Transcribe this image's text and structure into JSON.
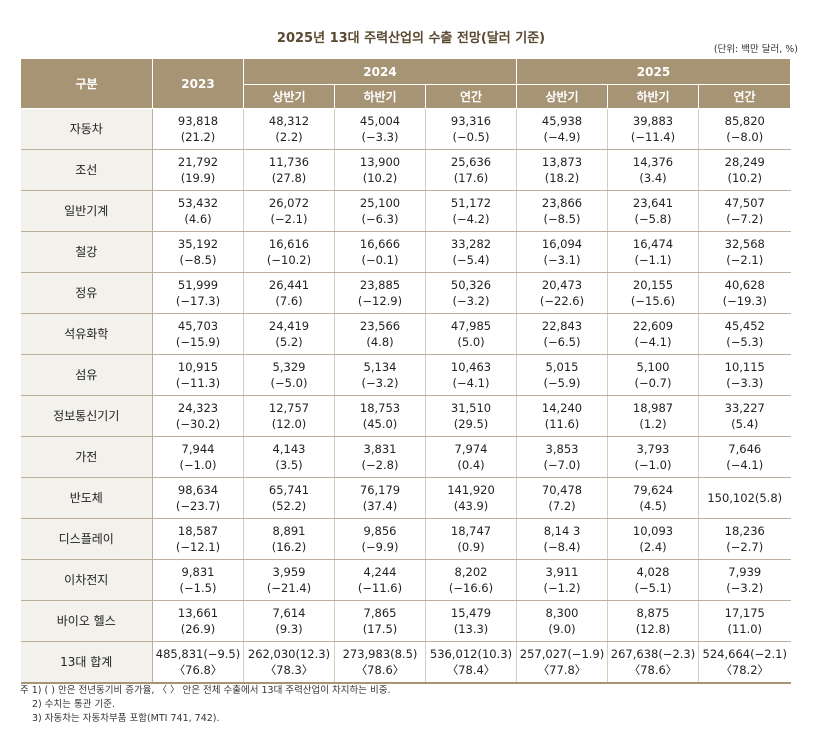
{
  "title": "2025년 13대 주력산업의 수출 전망(달러 기준)",
  "unit": "(단위: 백만 달러, %)",
  "headers": {
    "category": "구분",
    "y2023": "2023",
    "y2024": "2024",
    "y2025": "2025",
    "h1": "상반기",
    "h2": "하반기",
    "annual": "연간"
  },
  "rows": [
    {
      "name": "자동차",
      "cells": [
        [
          "93,818",
          "(21.2)"
        ],
        [
          "48,312",
          "(2.2)"
        ],
        [
          "45,004",
          "(−3.3)"
        ],
        [
          "93,316",
          "(−0.5)"
        ],
        [
          "45,938",
          "(−4.9)"
        ],
        [
          "39,883",
          "(−11.4)"
        ],
        [
          "85,820",
          "(−8.0)"
        ]
      ]
    },
    {
      "name": "조선",
      "cells": [
        [
          "21,792",
          "(19.9)"
        ],
        [
          "11,736",
          "(27.8)"
        ],
        [
          "13,900",
          "(10.2)"
        ],
        [
          "25,636",
          "(17.6)"
        ],
        [
          "13,873",
          "(18.2)"
        ],
        [
          "14,376",
          "(3.4)"
        ],
        [
          "28,249",
          "(10.2)"
        ]
      ]
    },
    {
      "name": "일반기계",
      "cells": [
        [
          "53,432",
          "(4.6)"
        ],
        [
          "26,072",
          "(−2.1)"
        ],
        [
          "25,100",
          "(−6.3)"
        ],
        [
          "51,172",
          "(−4.2)"
        ],
        [
          "23,866",
          "(−8.5)"
        ],
        [
          "23,641",
          "(−5.8)"
        ],
        [
          "47,507",
          "(−7.2)"
        ]
      ]
    },
    {
      "name": "철강",
      "cells": [
        [
          "35,192",
          "(−8.5)"
        ],
        [
          "16,616",
          "(−10.2)"
        ],
        [
          "16,666",
          "(−0.1)"
        ],
        [
          "33,282",
          "(−5.4)"
        ],
        [
          "16,094",
          "(−3.1)"
        ],
        [
          "16,474",
          "(−1.1)"
        ],
        [
          "32,568",
          "(−2.1)"
        ]
      ]
    },
    {
      "name": "정유",
      "cells": [
        [
          "51,999",
          "(−17.3)"
        ],
        [
          "26,441",
          "(7.6)"
        ],
        [
          "23,885",
          "(−12.9)"
        ],
        [
          "50,326",
          "(−3.2)"
        ],
        [
          "20,473",
          "(−22.6)"
        ],
        [
          "20,155",
          "(−15.6)"
        ],
        [
          "40,628",
          "(−19.3)"
        ]
      ]
    },
    {
      "name": "석유화학",
      "cells": [
        [
          "45,703",
          "(−15.9)"
        ],
        [
          "24,419",
          "(5.2)"
        ],
        [
          "23,566",
          "(4.8)"
        ],
        [
          "47,985",
          "(5.0)"
        ],
        [
          "22,843",
          "(−6.5)"
        ],
        [
          "22,609",
          "(−4.1)"
        ],
        [
          "45,452",
          "(−5.3)"
        ]
      ]
    },
    {
      "name": "섬유",
      "cells": [
        [
          "10,915",
          "(−11.3)"
        ],
        [
          "5,329",
          "(−5.0)"
        ],
        [
          "5,134",
          "(−3.2)"
        ],
        [
          "10,463",
          "(−4.1)"
        ],
        [
          "5,015",
          "(−5.9)"
        ],
        [
          "5,100",
          "(−0.7)"
        ],
        [
          "10,115",
          "(−3.3)"
        ]
      ]
    },
    {
      "name": "정보통신기기",
      "cells": [
        [
          "24,323",
          "(−30.2)"
        ],
        [
          "12,757",
          "(12.0)"
        ],
        [
          "18,753",
          "(45.0)"
        ],
        [
          "31,510",
          "(29.5)"
        ],
        [
          "14,240",
          "(11.6)"
        ],
        [
          "18,987",
          "(1.2)"
        ],
        [
          "33,227",
          "(5.4)"
        ]
      ]
    },
    {
      "name": "가전",
      "cells": [
        [
          "7,944",
          "(−1.0)"
        ],
        [
          "4,143",
          "(3.5)"
        ],
        [
          "3,831",
          "(−2.8)"
        ],
        [
          "7,974",
          "(0.4)"
        ],
        [
          "3,853",
          "(−7.0)"
        ],
        [
          "3,793",
          "(−1.0)"
        ],
        [
          "7,646",
          "(−4.1)"
        ]
      ]
    },
    {
      "name": "반도체",
      "cells": [
        [
          "98,634",
          "(−23.7)"
        ],
        [
          "65,741",
          "(52.2)"
        ],
        [
          "76,179",
          "(37.4)"
        ],
        [
          "141,920",
          "(43.9)"
        ],
        [
          "70,478",
          "(7.2)"
        ],
        [
          "79,624",
          "(4.5)"
        ],
        [
          "150,102(5.8)",
          ""
        ]
      ]
    },
    {
      "name": "디스플레이",
      "cells": [
        [
          "18,587",
          "(−12.1)"
        ],
        [
          "8,891",
          "(16.2)"
        ],
        [
          "9,856",
          "(−9.9)"
        ],
        [
          "18,747",
          "(0.9)"
        ],
        [
          "8,14 3",
          "(−8.4)"
        ],
        [
          "10,093",
          "(2.4)"
        ],
        [
          "18,236",
          "(−2.7)"
        ]
      ]
    },
    {
      "name": "이차전지",
      "cells": [
        [
          "9,831",
          "(−1.5)"
        ],
        [
          "3,959",
          "(−21.4)"
        ],
        [
          "4,244",
          "(−11.6)"
        ],
        [
          "8,202",
          "(−16.6)"
        ],
        [
          "3,911",
          "(−1.2)"
        ],
        [
          "4,028",
          "(−5.1)"
        ],
        [
          "7,939",
          "(−3.2)"
        ]
      ]
    },
    {
      "name": "바이오 헬스",
      "cells": [
        [
          "13,661",
          "(26.9)"
        ],
        [
          "7,614",
          "(9.3)"
        ],
        [
          "7,865",
          "(17.5)"
        ],
        [
          "15,479",
          "(13.3)"
        ],
        [
          "8,300",
          "(9.0)"
        ],
        [
          "8,875",
          "(12.8)"
        ],
        [
          "17,175",
          "(11.0)"
        ]
      ]
    },
    {
      "name": "13대 합계",
      "cells": [
        [
          "485,831(−9.5)",
          "〈76.8〉"
        ],
        [
          "262,030(12.3)",
          "〈78.3〉"
        ],
        [
          "273,983(8.5)",
          "〈78.6〉"
        ],
        [
          "536,012(10.3)",
          "〈78.4〉"
        ],
        [
          "257,027(−1.9)",
          "〈77.8〉"
        ],
        [
          "267,638(−2.3)",
          "〈78.6〉"
        ],
        [
          "524,664(−2.1)",
          "〈78.2〉"
        ]
      ]
    }
  ],
  "notes": [
    "주 1) ( ) 안은 전년동기비 증가율, 〈 〉 안은 전체 수출에서 13대 주력산업이 차지하는 비중.",
    "2) 수치는 통관 기준.",
    "3) 자동차는 자동차부품 포함(MTI 741, 742)."
  ]
}
